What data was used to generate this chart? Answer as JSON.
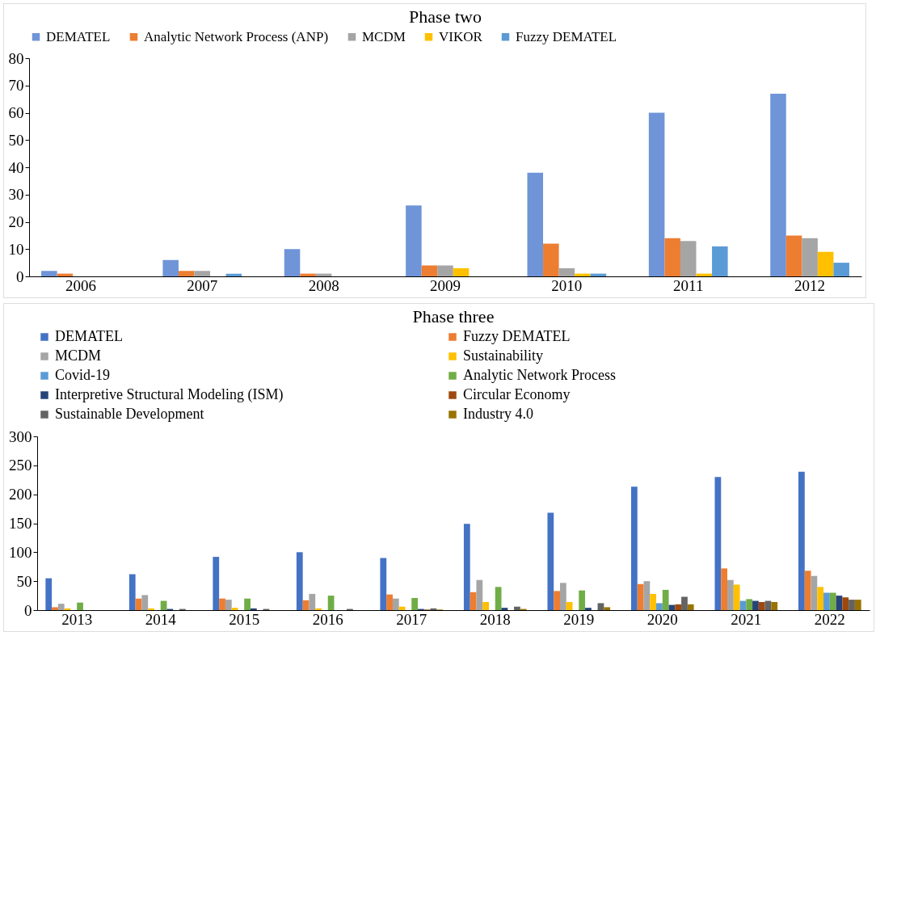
{
  "chart_data": [
    {
      "type": "bar",
      "title": "Phase two",
      "categories": [
        "2006",
        "2007",
        "2008",
        "2009",
        "2010",
        "2011",
        "2012"
      ],
      "series": [
        {
          "name": "DEMATEL",
          "color": "#6f94d8",
          "values": [
            2,
            6,
            10,
            26,
            38,
            60,
            67
          ]
        },
        {
          "name": "Analytic Network Process (ANP)",
          "color": "#ed7d31",
          "values": [
            1,
            2,
            1,
            4,
            12,
            14,
            15
          ]
        },
        {
          "name": "MCDM",
          "color": "#a5a5a5",
          "values": [
            0,
            2,
            1,
            4,
            3,
            13,
            14
          ]
        },
        {
          "name": "VIKOR",
          "color": "#ffc000",
          "values": [
            0,
            0,
            0,
            3,
            1,
            1,
            9
          ]
        },
        {
          "name": "Fuzzy DEMATEL",
          "color": "#5b9bd5",
          "values": [
            0,
            1,
            0,
            0,
            1,
            11,
            5
          ]
        }
      ],
      "ylim": [
        0,
        80
      ],
      "yticks": [
        0,
        10,
        20,
        30,
        40,
        50,
        60,
        70,
        80
      ],
      "grid": false,
      "legend": "top"
    },
    {
      "type": "bar",
      "title": "Phase three",
      "categories": [
        "2013",
        "2014",
        "2015",
        "2016",
        "2017",
        "2018",
        "2019",
        "2020",
        "2021",
        "2022"
      ],
      "series": [
        {
          "name": "DEMATEL",
          "color": "#4472c4",
          "values": [
            55,
            62,
            92,
            100,
            90,
            149,
            168,
            213,
            230,
            239
          ]
        },
        {
          "name": "Fuzzy DEMATEL",
          "color": "#ed7d31",
          "values": [
            5,
            20,
            20,
            17,
            27,
            31,
            33,
            45,
            72,
            68
          ]
        },
        {
          "name": "MCDM",
          "color": "#a5a5a5",
          "values": [
            11,
            26,
            18,
            28,
            20,
            52,
            47,
            50,
            52,
            59
          ]
        },
        {
          "name": "Sustainability",
          "color": "#ffc000",
          "values": [
            3,
            3,
            4,
            3,
            6,
            14,
            14,
            28,
            44,
            40
          ]
        },
        {
          "name": "Covid-19",
          "color": "#5b9bd5",
          "values": [
            0,
            0,
            0,
            0,
            0,
            0,
            0,
            12,
            16,
            30
          ]
        },
        {
          "name": "Analytic Network Process",
          "color": "#70ad47",
          "values": [
            13,
            16,
            20,
            25,
            21,
            40,
            34,
            35,
            19,
            30
          ]
        },
        {
          "name": "Interpretive Structural Modeling (ISM)",
          "color": "#264478",
          "values": [
            0,
            2,
            3,
            0,
            2,
            4,
            4,
            9,
            16,
            25
          ]
        },
        {
          "name": "Circular Economy",
          "color": "#9e480e",
          "values": [
            0,
            0,
            0,
            0,
            1,
            0,
            0,
            10,
            14,
            22
          ]
        },
        {
          "name": "Sustainable Development",
          "color": "#636363",
          "values": [
            0,
            2,
            2,
            2,
            3,
            6,
            12,
            23,
            16,
            18
          ]
        },
        {
          "name": "Industry 4.0",
          "color": "#997300",
          "values": [
            0,
            0,
            0,
            0,
            1,
            2,
            5,
            10,
            14,
            18
          ]
        }
      ],
      "ylim": [
        0,
        300
      ],
      "yticks": [
        0,
        50,
        100,
        150,
        200,
        250,
        300
      ],
      "grid": false,
      "legend": "top"
    }
  ]
}
